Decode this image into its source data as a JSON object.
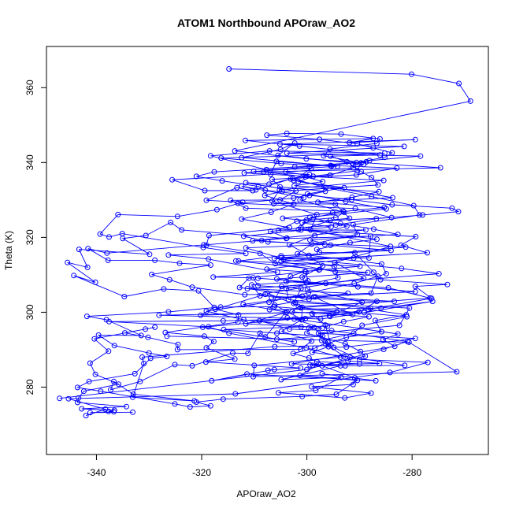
{
  "chart_data": {
    "type": "scatter",
    "title": "ATOM1 Northbound APOraw_AO2",
    "xlabel": "APOraw_AO2",
    "ylabel": "Theta (K)",
    "xlim": [
      -349.5,
      -265.5
    ],
    "ylim": [
      262,
      371
    ],
    "x_ticks": [
      -340,
      -320,
      -300,
      -280
    ],
    "y_ticks": [
      280,
      300,
      320,
      340,
      360
    ],
    "grid": false,
    "series_color": "#0000ff",
    "series": [
      {
        "style": "line+points",
        "x": [
          -314.8,
          -280.1,
          -271.1,
          -268.9,
          -313.7,
          -300.1,
          -274.6,
          -308.2,
          -300.3,
          -297.0,
          -302.4,
          -286.3,
          -291.4,
          -297.9,
          -285.3,
          -295.1,
          -304.6,
          -293.6,
          -287.3,
          -282.7,
          -299.4,
          -295.5,
          -284.0,
          -304.9,
          -313.0,
          -289.9,
          -300.4,
          -303.1,
          -303.9,
          -290.3,
          -279.4,
          -298.4,
          -283.4,
          -301.6,
          -302.8,
          -288.2,
          -293.0,
          -296.1,
          -315.8,
          -305.7,
          -297.0,
          -305.7,
          -302.4,
          -319.8,
          -295.7,
          -289.5,
          -299.9,
          -300.9,
          -297.0,
          -299.6,
          -303.3,
          -298.5,
          -292.4,
          -299.4,
          -284.9,
          -292.6,
          -299.9,
          -292.9,
          -301.6,
          -298.8,
          -304.0,
          -291.2,
          -291.2,
          -288.7,
          -299.5,
          -311.9,
          -285.4,
          -305.2,
          -306.6,
          -298.1,
          -299.3,
          -284.1,
          -294.7,
          -289.2,
          -307.5,
          -300.9,
          -301.0,
          -304.8,
          -299.1,
          -301.2,
          -324.6,
          -324.5,
          -330.2,
          -334.6,
          -330.7,
          -328.9,
          -340.4,
          -337.7,
          -341.2,
          -340.2,
          -335.8,
          -342.4,
          -343.4,
          -343.6,
          -334.3,
          -342.8,
          -336.6,
          -337.7,
          -336.7,
          -341.2,
          -333.1
        ],
        "y": [
          365.0,
          363.6,
          361.1,
          356.4,
          343.1,
          341.0,
          338.6,
          337.5,
          336.2,
          334.9,
          333.8,
          332.2,
          330.7,
          329.4,
          328.0,
          326.6,
          325.1,
          323.7,
          322.2,
          320.8,
          319.3,
          317.9,
          316.5,
          315.1,
          313.7,
          312.3,
          310.9,
          309.6,
          308.2,
          306.8,
          305.5,
          304.1,
          302.9,
          301.5,
          300.1,
          298.8,
          297.5,
          296.3,
          295.4,
          294.4,
          293.6,
          292.8,
          292.1,
          296.0,
          299.1,
          302.7,
          306.2,
          309.4,
          312.4,
          315.2,
          318.0,
          320.5,
          323.0,
          325.4,
          327.6,
          329.6,
          331.6,
          333.3,
          334.9,
          336.3,
          337.5,
          338.6,
          339.5,
          340.2,
          338.9,
          337.2,
          335.2,
          332.7,
          329.7,
          326.1,
          322.0,
          317.6,
          313.3,
          309.1,
          305.1,
          301.3,
          298.0,
          294.9,
          292.3,
          290.1,
          290.0,
          291.4,
          293.3,
          294.5,
          295.5,
          296.0,
          292.9,
          289.6,
          286.4,
          283.4,
          280.8,
          278.9,
          277.1,
          275.9,
          274.8,
          274.2,
          273.8,
          273.5,
          273.4,
          273.2,
          273.3
        ]
      },
      {
        "style": "line+points",
        "x": [
          -347.0,
          -300.0,
          -285.4,
          -280.9,
          -295.3,
          -303.3,
          -309.0,
          -289.1,
          -276.1,
          -285.9,
          -307.1,
          -304.8,
          -274.9,
          -282.0,
          -304.9,
          -288.2,
          -287.9,
          -303.9,
          -323.8,
          -325.9,
          -330.6,
          -335.0,
          -329.9,
          -343.3,
          -341.7,
          -345.5,
          -340.2,
          -344.3,
          -334.7,
          -327.2,
          -320.6,
          -317.6,
          -320.2,
          -304.1,
          -307.9,
          -308.9,
          -311.2,
          -314.1,
          -321.8,
          -325.1,
          -331.7,
          -337.3,
          -336.7,
          -333.0,
          -321.4,
          -333.1,
          -331.0,
          -331.3,
          -306.1,
          -295.4,
          -296.5,
          -299.0,
          -290.1,
          -286.7,
          -308.9,
          -310.5,
          -299.8,
          -300.2,
          -307.6,
          -291.1,
          -304.4,
          -311.6,
          -296.6,
          -310.3,
          -288.8,
          -305.4,
          -301.9,
          -293.1,
          -311.6,
          -314.5,
          -305.1,
          -302.1,
          -311.6,
          -307.2,
          -299.5,
          -310.1,
          -294.2,
          -304.9,
          -316.3,
          -285.2,
          -307.1,
          -318.3,
          -307.7,
          -299.2,
          -302.5,
          -283.7,
          -306.3,
          -294.6,
          -291.9,
          -300.9,
          -295.4,
          -312.0,
          -307.4,
          -281.2,
          -306.2,
          -294.8,
          -294.1,
          -303.9,
          -303.5,
          -287.9,
          -295.6
        ],
        "y": [
          277.0,
          284.7,
          290.1,
          292.2,
          295.1,
          295.5,
          297.7,
          299.9,
          302.9,
          301.1,
          300.7,
          306.9,
          310.3,
          311.7,
          314.6,
          314.5,
          320.3,
          319.7,
          322.0,
          324.0,
          320.5,
          319.7,
          315.5,
          316.8,
          312.0,
          313.3,
          308.0,
          309.8,
          304.2,
          306.2,
          305.7,
          301.3,
          299.2,
          299.9,
          293.4,
          294.4,
          289.0,
          289.1,
          285.7,
          286.0,
          281.5,
          279.3,
          281.5,
          278.1,
          276.3,
          277.3,
          286.3,
          288.0,
          290.8,
          291.1,
          296.6,
          299.6,
          300.1,
          302.9,
          304.4,
          307.3,
          308.4,
          310.8,
          311.5,
          314.5,
          314.2,
          317.2,
          318.1,
          319.1,
          322.0,
          321.9,
          324.3,
          327.0,
          327.8,
          329.9,
          330.0,
          332.4,
          334.6,
          334.2,
          336.8,
          337.6,
          339.0,
          339.7,
          341.2,
          342.5,
          343.1,
          341.8,
          338.1,
          338.4,
          335.2,
          330.6,
          329.0,
          328.9,
          325.1,
          323.9,
          322.8,
          320.3,
          318.8,
          317.4,
          314.4,
          312.3,
          309.2,
          306.3,
          303.4,
          301.0,
          298.9
        ]
      },
      {
        "style": "line+points",
        "x": [
          -342.0,
          -338.3,
          -345.3,
          -313.6,
          -284.2,
          -277.0,
          -290.0,
          -294.9,
          -292.5,
          -279.4,
          -297.8,
          -282.4,
          -280.5,
          -302.2,
          -302.5,
          -301.1,
          -309.3,
          -310.2,
          -317.8,
          -305.6,
          -318.7,
          -326.3,
          -311.6,
          -319.7,
          -335.1,
          -337.6,
          -339.3,
          -335.9,
          -324.6,
          -317.1,
          -312.2,
          -319.1,
          -313.3,
          -310.3,
          -319.4,
          -325.6,
          -306.9,
          -305.8,
          -295.3,
          -312.4,
          -305.0,
          -302.3,
          -305.5,
          -289.2,
          -295.6,
          -303.1,
          -309.7,
          -312.4,
          -300.6,
          -301.3,
          -292.9,
          -294.5,
          -300.1,
          -301.6,
          -286.7,
          -291.8,
          -298.1,
          -297.6,
          -290.9,
          -287.3,
          -286.0,
          -273.3,
          -279.4,
          -276.3,
          -288.3,
          -281.1,
          -287.0,
          -285.8,
          -292.5,
          -296.4,
          -293.0,
          -281.4,
          -293.6,
          -304.9,
          -293.5,
          -298.3,
          -305.4,
          -292.8,
          -287.8,
          -299.1,
          -291.2,
          -290.9,
          -297.1,
          -288.9,
          -289.8,
          -292.7,
          -300.0,
          -299.6,
          -297.1,
          -302.4,
          -300.9,
          -306.1,
          -299.6,
          -292.2,
          -311.3,
          -296.4,
          -300.1,
          -305.7,
          -288.4,
          -297.6,
          -313.5
        ],
        "y": [
          272.4,
          274.1,
          276.9,
          278.2,
          283.9,
          286.6,
          287.4,
          290.6,
          290.7,
          293.0,
          294.4,
          296.5,
          301.1,
          302.6,
          302.4,
          306.4,
          307.1,
          309.2,
          309.4,
          310.7,
          314.2,
          315.3,
          315.7,
          317.3,
          321.0,
          320.1,
          320.9,
          326.1,
          325.6,
          327.4,
          329.4,
          329.9,
          333.3,
          332.5,
          332.5,
          335.4,
          336.9,
          340.3,
          339.1,
          341.3,
          343.5,
          345.2,
          341.9,
          339.5,
          336.6,
          335.6,
          332.7,
          333.7,
          330.6,
          330.0,
          326.7,
          325.3,
          324.6,
          322.1,
          319.5,
          318.6,
          316.8,
          316.0,
          315.9,
          310.7,
          308.7,
          307.4,
          306.9,
          303.7,
          300.8,
          299.3,
          297.8,
          294.8,
          293.3,
          291.5,
          288.3,
          285.8,
          285.7,
          282.0,
          282.6,
          279.1,
          278.5,
          277.1,
          278.4,
          280.1,
          280.7,
          282.5,
          285.7,
          288.3,
          289.5,
          291.6,
          294.4,
          295.8,
          295.7,
          298.2,
          298.1,
          301.9,
          303.5,
          305.1,
          306.3,
          307.7,
          307.9,
          308.9,
          310.6,
          311.4,
          313.7
        ]
      },
      {
        "style": "line+points",
        "x": [
          -326.6,
          -280.6,
          -271.5,
          -310.2,
          -310.0,
          -293.6,
          -300.1,
          -314.8,
          -318.7,
          -337.6,
          -315.9,
          -300.3,
          -328.1,
          -294.3,
          -306.2,
          -316.4,
          -326.3,
          -341.8,
          -338.1,
          -331.5,
          -339.6,
          -336.6,
          -330.0,
          -326.6,
          -329.7,
          -332.7,
          -341.4,
          -343.6,
          -339.2,
          -325.1,
          -322.2,
          -318.3,
          -321.0,
          -315.9,
          -300.9,
          -294.4,
          -290.4,
          -301.3,
          -297.8,
          -302.9,
          -283.3,
          -285.5,
          -282.7,
          -303.7,
          -297.4,
          -291.3,
          -298.7,
          -306.7,
          -287.8,
          -286.5,
          -294.6,
          -304.9,
          -277.1,
          -282.1,
          -279.3,
          -301.1,
          -295.6,
          -283.9,
          -290.8,
          -313.1,
          -302.5,
          -296.5,
          -305.1,
          -306.6,
          -290.6,
          -282.9,
          -295.5,
          -288.1,
          -278.4,
          -303.8,
          -281.5,
          -305.1,
          -279.4,
          -291.9,
          -287.4,
          -311.7,
          -301.4,
          -286.1,
          -295.5,
          -292.4,
          -289.7,
          -287.7,
          -286.5,
          -304.7,
          -308.0,
          -302.5,
          -306.8,
          -312.4,
          -303.3,
          -318.6,
          -319.1,
          -308.9,
          -306.0,
          -297.7,
          -311.0,
          -312.8,
          -300.9,
          -312.1,
          -303.8,
          -311.6,
          -301.1
        ],
        "y": [
          293.6,
          292.0,
          284.1,
          282.8,
          285.8,
          288.0,
          290.5,
          294.4,
          296.1,
          297.5,
          297.7,
          298.3,
          299.2,
          300.1,
          301.5,
          301.4,
          300.1,
          298.9,
          298.0,
          293.8,
          293.9,
          291.1,
          289.1,
          288.2,
          287.7,
          283.6,
          281.5,
          279.9,
          278.9,
          275.5,
          274.7,
          275.0,
          276.0,
          276.8,
          277.5,
          278.1,
          281.8,
          283.1,
          286.1,
          286.2,
          290.9,
          292.7,
          294.2,
          298.5,
          298.2,
          299.4,
          304.1,
          303.9,
          305.1,
          309.6,
          310.8,
          313.6,
          315.9,
          317.9,
          320.2,
          322.0,
          324.5,
          325.3,
          327.7,
          329.1,
          330.5,
          332.3,
          333.5,
          335.5,
          336.7,
          338.5,
          339.2,
          340.5,
          341.7,
          342.5,
          344.3,
          344.9,
          346.1,
          345.3,
          346.4,
          345.9,
          344.4,
          342.0,
          341.7,
          340.2,
          337.6,
          336.0,
          334.0,
          332.3,
          331.2,
          328.9,
          326.7,
          324.9,
          322.6,
          320.5,
          317.9,
          315.7,
          313.0,
          311.3,
          309.1,
          306.6,
          304.3,
          302.1,
          300.0,
          296.9,
          296.1
        ]
      },
      {
        "style": "line+points",
        "x": [
          -297.1,
          -286.9,
          -311.4,
          -318.1,
          -306.2,
          -307.4,
          -301.2,
          -319.2,
          -313.7,
          -319.1,
          -317.7,
          -319.5,
          -326.9,
          -313.1,
          -313.0,
          -317.4,
          -307.9,
          -311.8,
          -321.8,
          -326.1,
          -329.5,
          -318.3,
          -324.2,
          -328.9,
          -337.8,
          -341.6,
          -338.0,
          -319.6,
          -308.6,
          -303.8,
          -306.9,
          -301.1,
          -294.5,
          -286.8,
          -278.0,
          -271.2,
          -272.4,
          -283.8,
          -291.5,
          -299.5,
          -307.9,
          -309.2,
          -316.1,
          -321.0,
          -317.6,
          -302.3,
          -290.6,
          -285.2,
          -283.8,
          -287.4,
          -290.4,
          -297.6,
          -307.6,
          -303.8,
          -293.5,
          -286.1,
          -286.7,
          -295.6,
          -296.8,
          -289.7,
          -290.4,
          -302.7,
          -296.4,
          -287.7,
          -279.7,
          -278.6,
          -291.2,
          -290.4,
          -299.1,
          -301.8,
          -285.8,
          -284.9,
          -291.0,
          -299.7,
          -307.2,
          -319.1,
          -312.0,
          -298.6,
          -297.4,
          -296.0,
          -298.5,
          -302.6,
          -299.6,
          -298.1,
          -290.0,
          -298.9,
          -292.7,
          -299.4,
          -286.2,
          -292.2,
          -291.8,
          -299.0,
          -295.9,
          -297.2,
          -291.1,
          -289.5,
          -281.0,
          -301.2,
          -276.6,
          -284.5,
          -309.3
        ],
        "y": [
          283.6,
          281.7,
          283.5,
          281.7,
          284.7,
          284.5,
          285.1,
          286.7,
          287.5,
          290.5,
          292.2,
          293.6,
          294.6,
          297.4,
          299.3,
          300.8,
          304.8,
          304.7,
          306.7,
          308.7,
          310.1,
          312.6,
          313.1,
          313.9,
          313.9,
          317.0,
          315.8,
          318.0,
          319.2,
          319.8,
          321.6,
          322.6,
          323.3,
          325.0,
          326.0,
          326.9,
          327.8,
          328.7,
          330.1,
          331.2,
          332.6,
          333.6,
          335.1,
          336.3,
          337.5,
          338.8,
          340.0,
          341.4,
          342.6,
          343.9,
          345.0,
          346.2,
          347.3,
          347.8,
          347.6,
          346.3,
          345.1,
          343.6,
          341.8,
          339.9,
          337.8,
          335.7,
          333.3,
          330.9,
          328.5,
          326.0,
          323.4,
          320.8,
          318.2,
          315.6,
          312.9,
          310.3,
          307.7,
          305.2,
          302.7,
          300.3,
          298.0,
          295.9,
          293.9,
          292.1,
          290.4,
          289.0,
          287.8,
          286.8,
          286.2,
          285.8,
          285.7,
          285.9,
          286.3,
          287.0,
          288.0,
          289.3,
          290.8,
          292.5,
          294.4,
          296.5,
          298.8,
          301.2,
          303.8,
          306.5,
          309.1
        ]
      }
    ]
  }
}
